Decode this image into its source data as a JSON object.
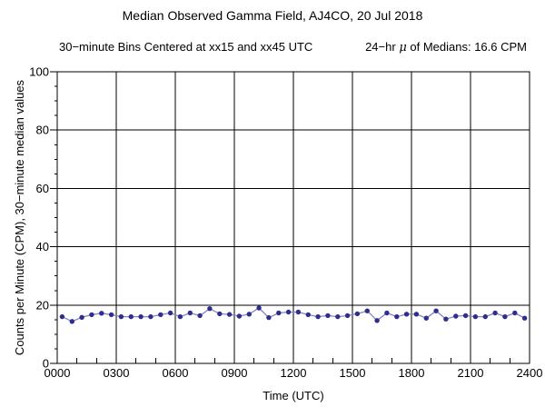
{
  "chart_data": {
    "type": "line",
    "title": "Median Observed Gamma Field, AJ4CO, 20 Jul 2018",
    "subtitle_left": "30−minute Bins Centered at xx15 and xx45 UTC",
    "subtitle_right_prefix": "24−hr ",
    "subtitle_right_mu": "μ",
    "subtitle_right_suffix": " of Medians: 16.6 CPM",
    "mean_of_medians_cpm": 16.6,
    "xlabel": "Time (UTC)",
    "ylabel": "Counts per Minute (CPM), 30−minute median values",
    "ylim": [
      0,
      100
    ],
    "xlim_hours": [
      0,
      24
    ],
    "grid": true,
    "legend": "none",
    "x_major_ticks_hours": [
      0,
      3,
      6,
      9,
      12,
      15,
      18,
      21,
      24
    ],
    "x_tick_labels": [
      "0000",
      "0300",
      "0600",
      "0900",
      "1200",
      "1500",
      "1800",
      "2100",
      "2400"
    ],
    "x_minor_step_hours": 1,
    "y_major_ticks": [
      0,
      20,
      40,
      60,
      80,
      100
    ],
    "y_minor_step": 5,
    "line_color": "#8484c4",
    "marker_color": "#2e2e8f",
    "series": [
      {
        "name": "30-minute median values",
        "times": [
          "0015",
          "0045",
          "0115",
          "0145",
          "0215",
          "0245",
          "0315",
          "0345",
          "0415",
          "0445",
          "0515",
          "0545",
          "0615",
          "0645",
          "0715",
          "0745",
          "0815",
          "0845",
          "0915",
          "0945",
          "1015",
          "1045",
          "1115",
          "1145",
          "1215",
          "1245",
          "1315",
          "1345",
          "1415",
          "1445",
          "1515",
          "1545",
          "1615",
          "1645",
          "1715",
          "1745",
          "1815",
          "1845",
          "1915",
          "1945",
          "2015",
          "2045",
          "2115",
          "2145",
          "2215",
          "2245",
          "2315",
          "2345"
        ],
        "values": [
          16.0,
          14.4,
          15.8,
          16.7,
          17.2,
          16.7,
          16.0,
          16.0,
          16.0,
          16.0,
          16.7,
          17.3,
          16.0,
          17.3,
          16.4,
          18.8,
          17.0,
          16.8,
          16.2,
          16.9,
          19.0,
          15.7,
          17.3,
          17.6,
          17.6,
          16.7,
          16.0,
          16.4,
          16.0,
          16.4,
          17.0,
          18.0,
          14.7,
          17.3,
          16.0,
          16.9,
          16.9,
          15.5,
          18.0,
          15.2,
          16.2,
          16.4,
          16.0,
          16.0,
          17.3,
          16.0,
          17.3,
          15.5
        ]
      }
    ]
  }
}
